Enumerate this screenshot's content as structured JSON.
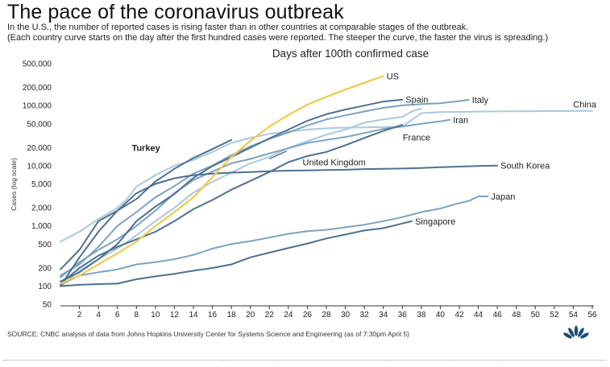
{
  "title": "The pace of the coronavirus outbreak",
  "subtitle_1": "In the U.S., the number of reported cases is rising faster than in other countries at comparable stages of the outbreak.",
  "subtitle_2": "(Each country curve starts on the day after the first hundred cases were reported. The steeper the curve, the faster the virus is spreading.)",
  "source": "SOURCE: CNBC analysis of data from Johns Hopkins University Center for Systems Science and Engineering (as of 7:30pm April 5)",
  "logo_icon": "peacock-logo-icon",
  "colors": {
    "highlight": "#f2c94c",
    "dark": "#4d7190",
    "mid": "#7aa3c4",
    "light": "#a9c8df",
    "axis": "#333333"
  },
  "chart_data": {
    "type": "line",
    "title": "Days after 100th confirmed case",
    "xlabel": "",
    "ylabel": "Cases (log scale)",
    "yscale": "log",
    "xlim": [
      0,
      56
    ],
    "ylim": [
      50,
      500000
    ],
    "x_ticks": [
      2,
      4,
      6,
      8,
      10,
      12,
      14,
      16,
      18,
      20,
      22,
      24,
      26,
      28,
      30,
      32,
      34,
      36,
      38,
      40,
      42,
      44,
      46,
      48,
      50,
      52,
      54,
      56
    ],
    "y_ticks": [
      50,
      100,
      200,
      500,
      1000,
      2000,
      5000,
      10000,
      20000,
      50000,
      100000,
      200000,
      500000
    ],
    "y_tick_labels": [
      "50",
      "100",
      "200",
      "500",
      "1,000",
      "2,000",
      "5,000",
      "10,000",
      "20,000",
      "50,000",
      "100,000",
      "200,000",
      "500,000"
    ],
    "grid": false,
    "series": [
      {
        "name": "China",
        "tone": "light",
        "bold": false,
        "points": [
          [
            0,
            550
          ],
          [
            2,
            800
          ],
          [
            4,
            1300
          ],
          [
            6,
            2000
          ],
          [
            7,
            2800
          ],
          [
            8,
            4500
          ],
          [
            10,
            7000
          ],
          [
            12,
            10000
          ],
          [
            14,
            12500
          ],
          [
            16,
            17000
          ],
          [
            18,
            24000
          ],
          [
            20,
            29000
          ],
          [
            22,
            34000
          ],
          [
            24,
            37000
          ],
          [
            26,
            40000
          ],
          [
            28,
            42000
          ],
          [
            30,
            43000
          ],
          [
            32,
            43500
          ],
          [
            34,
            44000
          ],
          [
            36,
            45000
          ],
          [
            38,
            75000
          ],
          [
            40,
            78000
          ],
          [
            45,
            80000
          ],
          [
            50,
            81000
          ],
          [
            56,
            82000
          ]
        ]
      },
      {
        "name": "US",
        "tone": "highlight",
        "bold": true,
        "points": [
          [
            0,
            110
          ],
          [
            2,
            150
          ],
          [
            4,
            230
          ],
          [
            6,
            350
          ],
          [
            8,
            550
          ],
          [
            10,
            1000
          ],
          [
            12,
            1700
          ],
          [
            14,
            3000
          ],
          [
            16,
            6500
          ],
          [
            18,
            14000
          ],
          [
            20,
            26000
          ],
          [
            22,
            45000
          ],
          [
            24,
            70000
          ],
          [
            26,
            104000
          ],
          [
            28,
            140000
          ],
          [
            30,
            185000
          ],
          [
            32,
            240000
          ],
          [
            34,
            310000
          ]
        ]
      },
      {
        "name": "Spain",
        "tone": "dark",
        "bold": false,
        "points": [
          [
            0,
            120
          ],
          [
            2,
            170
          ],
          [
            4,
            280
          ],
          [
            6,
            500
          ],
          [
            8,
            1200
          ],
          [
            10,
            2100
          ],
          [
            12,
            3400
          ],
          [
            14,
            6300
          ],
          [
            16,
            9900
          ],
          [
            18,
            14000
          ],
          [
            20,
            20000
          ],
          [
            22,
            28500
          ],
          [
            24,
            40000
          ],
          [
            26,
            56000
          ],
          [
            28,
            72000
          ],
          [
            30,
            86000
          ],
          [
            32,
            100000
          ],
          [
            34,
            117000
          ],
          [
            36,
            126000
          ]
        ]
      },
      {
        "name": "Italy",
        "tone": "mid",
        "bold": false,
        "points": [
          [
            0,
            150
          ],
          [
            2,
            230
          ],
          [
            4,
            450
          ],
          [
            6,
            1000
          ],
          [
            8,
            1700
          ],
          [
            10,
            3000
          ],
          [
            12,
            4600
          ],
          [
            14,
            7400
          ],
          [
            16,
            10100
          ],
          [
            18,
            15000
          ],
          [
            20,
            21000
          ],
          [
            22,
            28000
          ],
          [
            24,
            35700
          ],
          [
            26,
            47000
          ],
          [
            28,
            59000
          ],
          [
            30,
            69000
          ],
          [
            32,
            80000
          ],
          [
            34,
            92000
          ],
          [
            36,
            101000
          ],
          [
            38,
            106000
          ],
          [
            40,
            110000
          ],
          [
            42,
            119000
          ],
          [
            43,
            125000
          ]
        ]
      },
      {
        "name": "Iran",
        "tone": "mid",
        "bold": false,
        "points": [
          [
            0,
            140
          ],
          [
            2,
            250
          ],
          [
            4,
            400
          ],
          [
            6,
            600
          ],
          [
            8,
            1000
          ],
          [
            10,
            1800
          ],
          [
            12,
            3500
          ],
          [
            14,
            5800
          ],
          [
            16,
            8000
          ],
          [
            18,
            11000
          ],
          [
            20,
            13000
          ],
          [
            22,
            16000
          ],
          [
            24,
            19600
          ],
          [
            26,
            24000
          ],
          [
            28,
            27000
          ],
          [
            30,
            30000
          ],
          [
            32,
            35000
          ],
          [
            34,
            41000
          ],
          [
            36,
            45000
          ],
          [
            38,
            50000
          ],
          [
            40,
            55000
          ],
          [
            41,
            58000
          ]
        ]
      },
      {
        "name": "France",
        "tone": "light",
        "bold": false,
        "points": [
          [
            0,
            100
          ],
          [
            2,
            180
          ],
          [
            4,
            280
          ],
          [
            6,
            420
          ],
          [
            8,
            700
          ],
          [
            10,
            1200
          ],
          [
            12,
            2000
          ],
          [
            14,
            3600
          ],
          [
            16,
            5400
          ],
          [
            18,
            7700
          ],
          [
            20,
            11000
          ],
          [
            22,
            14000
          ],
          [
            24,
            19800
          ],
          [
            26,
            25600
          ],
          [
            28,
            32900
          ],
          [
            30,
            40100
          ],
          [
            32,
            52100
          ],
          [
            34,
            59000
          ],
          [
            36,
            65000
          ],
          [
            37,
            80000
          ],
          [
            38,
            90000
          ]
        ]
      },
      {
        "name": "United Kingdom",
        "tone": "dark",
        "bold": false,
        "points": [
          [
            0,
            110
          ],
          [
            2,
            200
          ],
          [
            4,
            320
          ],
          [
            6,
            450
          ],
          [
            8,
            600
          ],
          [
            10,
            800
          ],
          [
            12,
            1200
          ],
          [
            14,
            1900
          ],
          [
            16,
            2700
          ],
          [
            18,
            4000
          ],
          [
            20,
            5600
          ],
          [
            22,
            7900
          ],
          [
            24,
            11500
          ],
          [
            26,
            14500
          ],
          [
            28,
            17000
          ],
          [
            30,
            22000
          ],
          [
            32,
            29000
          ],
          [
            34,
            38000
          ],
          [
            36,
            48000
          ]
        ]
      },
      {
        "name": "Turkey",
        "tone": "dark",
        "bold": true,
        "points": [
          [
            0,
            190
          ],
          [
            2,
            400
          ],
          [
            4,
            1200
          ],
          [
            6,
            1800
          ],
          [
            8,
            2800
          ],
          [
            10,
            5500
          ],
          [
            12,
            8900
          ],
          [
            14,
            13500
          ],
          [
            16,
            19000
          ],
          [
            18,
            27000
          ]
        ]
      },
      {
        "name": "South Korea",
        "tone": "dark",
        "bold": false,
        "points": [
          [
            0,
            100
          ],
          [
            2,
            300
          ],
          [
            4,
            800
          ],
          [
            6,
            1800
          ],
          [
            8,
            3500
          ],
          [
            10,
            5000
          ],
          [
            12,
            6200
          ],
          [
            14,
            7000
          ],
          [
            16,
            7400
          ],
          [
            18,
            7700
          ],
          [
            20,
            7900
          ],
          [
            22,
            8100
          ],
          [
            24,
            8300
          ],
          [
            26,
            8400
          ],
          [
            28,
            8500
          ],
          [
            30,
            8600
          ],
          [
            32,
            8800
          ],
          [
            34,
            8900
          ],
          [
            36,
            9000
          ],
          [
            38,
            9200
          ],
          [
            40,
            9500
          ],
          [
            42,
            9700
          ],
          [
            44,
            9900
          ],
          [
            46,
            10100
          ]
        ]
      },
      {
        "name": "Japan",
        "tone": "mid",
        "bold": false,
        "points": [
          [
            0,
            105
          ],
          [
            2,
            150
          ],
          [
            4,
            170
          ],
          [
            6,
            190
          ],
          [
            8,
            230
          ],
          [
            10,
            250
          ],
          [
            12,
            280
          ],
          [
            14,
            330
          ],
          [
            16,
            420
          ],
          [
            18,
            500
          ],
          [
            20,
            560
          ],
          [
            22,
            640
          ],
          [
            24,
            740
          ],
          [
            26,
            820
          ],
          [
            28,
            860
          ],
          [
            30,
            950
          ],
          [
            32,
            1050
          ],
          [
            34,
            1200
          ],
          [
            36,
            1400
          ],
          [
            38,
            1700
          ],
          [
            40,
            1950
          ],
          [
            42,
            2400
          ],
          [
            43,
            2600
          ],
          [
            44,
            3100
          ],
          [
            45,
            3100
          ]
        ]
      },
      {
        "name": "Singapore",
        "tone": "dark",
        "bold": false,
        "points": [
          [
            0,
            100
          ],
          [
            2,
            105
          ],
          [
            4,
            108
          ],
          [
            6,
            110
          ],
          [
            8,
            130
          ],
          [
            10,
            145
          ],
          [
            12,
            160
          ],
          [
            14,
            180
          ],
          [
            16,
            200
          ],
          [
            18,
            230
          ],
          [
            20,
            300
          ],
          [
            22,
            360
          ],
          [
            24,
            430
          ],
          [
            26,
            510
          ],
          [
            28,
            620
          ],
          [
            30,
            720
          ],
          [
            32,
            840
          ],
          [
            34,
            920
          ],
          [
            36,
            1100
          ],
          [
            37,
            1200
          ]
        ]
      }
    ]
  }
}
